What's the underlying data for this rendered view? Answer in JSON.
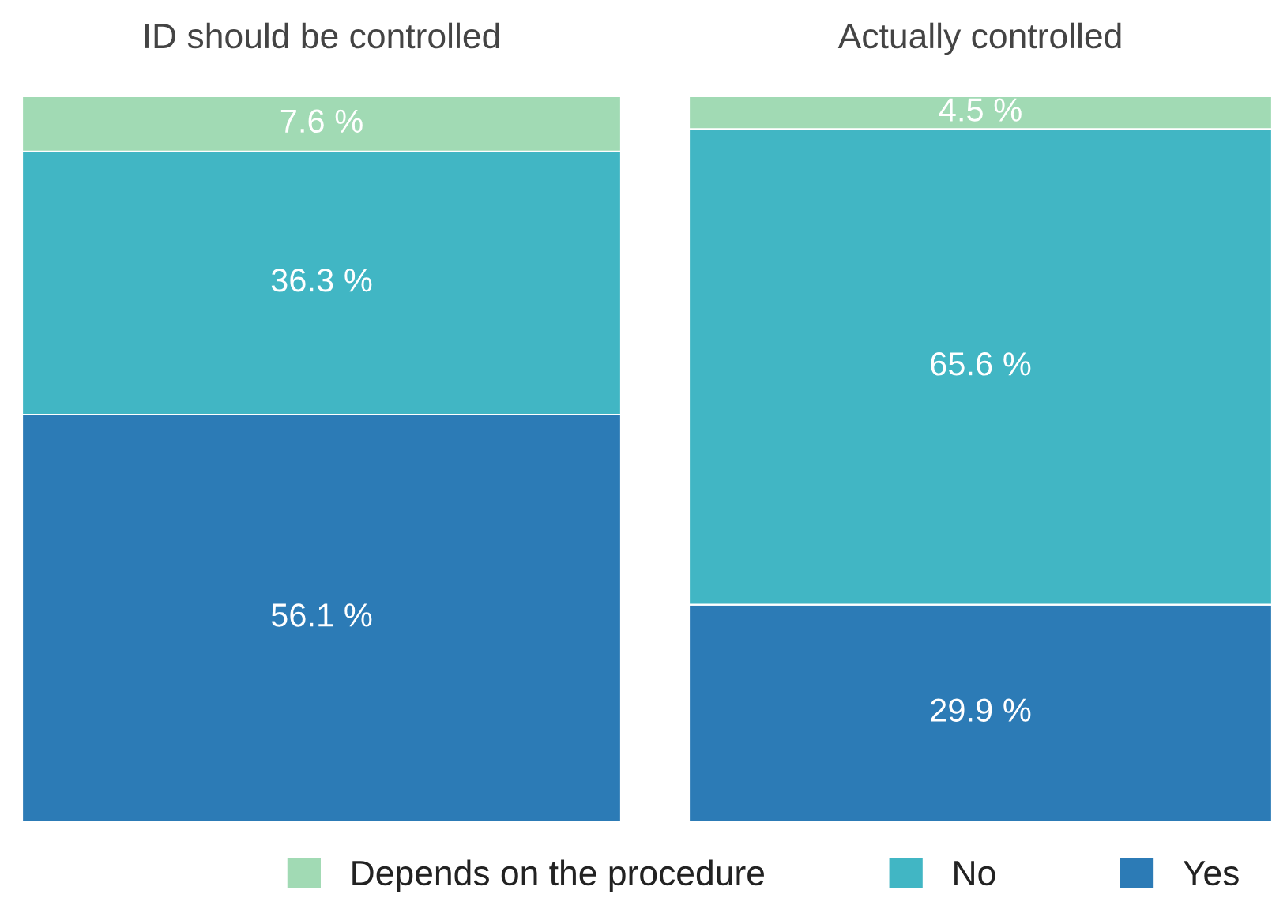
{
  "chart_data": [
    {
      "type": "bar",
      "title": "ID should be controlled",
      "categories": [
        null
      ],
      "stacked": true,
      "ylim": [
        0,
        100
      ],
      "tick_labels": false,
      "legend": "bottom",
      "series": [
        {
          "name": "Yes",
          "color": "#2c7bb6",
          "values": [
            56.1
          ],
          "value_labels": [
            "56.1 %"
          ]
        },
        {
          "name": "No",
          "color": "#41b6c4",
          "values": [
            36.3
          ],
          "value_labels": [
            "36.3 %"
          ]
        },
        {
          "name": "Depends on the procedure",
          "color": "#a1dab4",
          "values": [
            7.6
          ],
          "value_labels": [
            "7.6 %"
          ]
        }
      ]
    },
    {
      "type": "bar",
      "title": "Actually controlled",
      "categories": [
        null
      ],
      "stacked": true,
      "ylim": [
        0,
        100
      ],
      "tick_labels": false,
      "legend": "bottom",
      "series": [
        {
          "name": "Yes",
          "color": "#2c7bb6",
          "values": [
            29.9
          ],
          "value_labels": [
            "29.9 %"
          ]
        },
        {
          "name": "No",
          "color": "#41b6c4",
          "values": [
            65.6
          ],
          "value_labels": [
            "65.6 %"
          ]
        },
        {
          "name": "Depends on the procedure",
          "color": "#a1dab4",
          "values": [
            4.5
          ],
          "value_labels": [
            "4.5 %"
          ]
        }
      ]
    }
  ]
}
